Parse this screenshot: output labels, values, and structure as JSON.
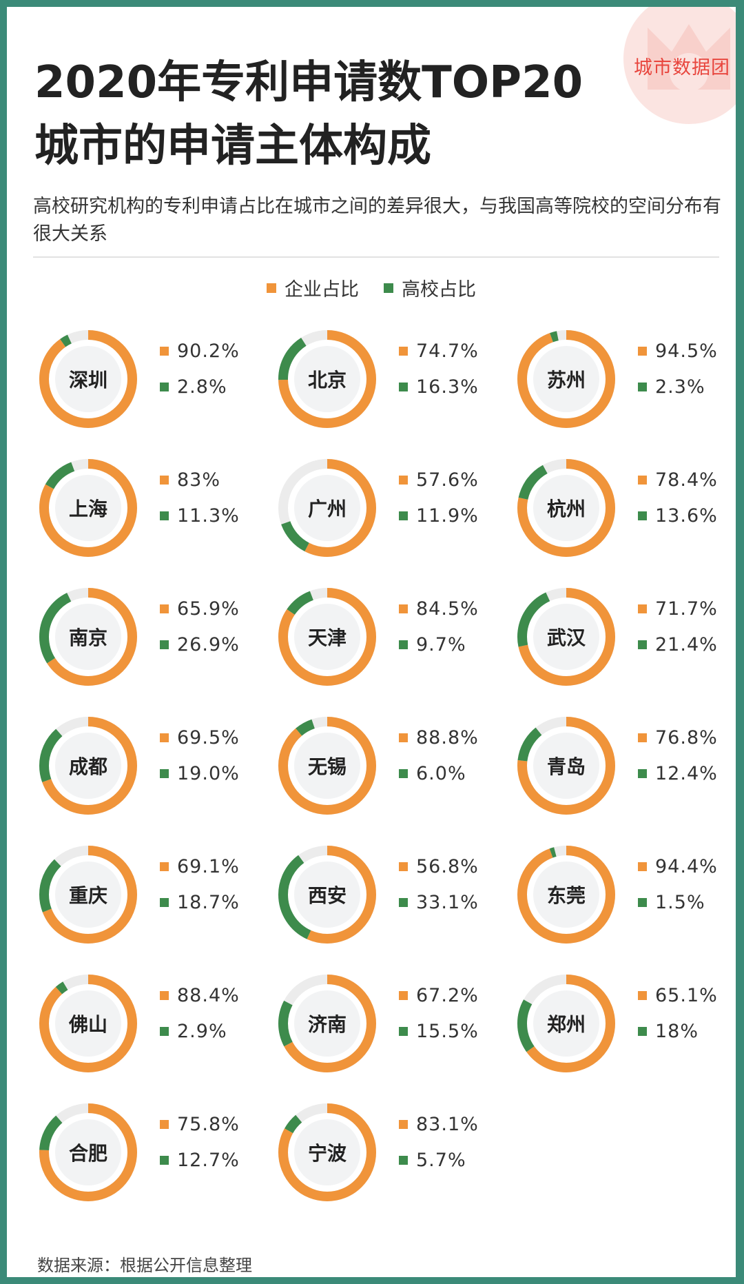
{
  "brand": "城市数据团",
  "title_lines": [
    "2020年专利申请数TOP20",
    "城市的申请主体构成"
  ],
  "subtitle": "高校研究机构的专利申请占比在城市之间的差异很大，与我国高等院校的空间分布有很大关系",
  "legend": {
    "enterprise": "企业占比",
    "university": "高校占比"
  },
  "colors": {
    "enterprise": "#f0943a",
    "university": "#3d8b4c",
    "track": "#ececec",
    "center": "#f2f3f4",
    "brand": "#e8463e"
  },
  "source": "数据来源：根据公开信息整理",
  "chart_data": {
    "type": "donut-grid",
    "title": "2020年专利申请数TOP20城市的申请主体构成",
    "series_names": [
      "企业占比",
      "高校占比"
    ],
    "cities": [
      {
        "name": "深圳",
        "enterprise": 90.2,
        "university": 2.8,
        "enterprise_label": "90.2%",
        "university_label": "2.8%"
      },
      {
        "name": "北京",
        "enterprise": 74.7,
        "university": 16.3,
        "enterprise_label": "74.7%",
        "university_label": "16.3%"
      },
      {
        "name": "苏州",
        "enterprise": 94.5,
        "university": 2.3,
        "enterprise_label": "94.5%",
        "university_label": "2.3%"
      },
      {
        "name": "上海",
        "enterprise": 83,
        "university": 11.3,
        "enterprise_label": "83%",
        "university_label": "11.3%"
      },
      {
        "name": "广州",
        "enterprise": 57.6,
        "university": 11.9,
        "enterprise_label": "57.6%",
        "university_label": "11.9%"
      },
      {
        "name": "杭州",
        "enterprise": 78.4,
        "university": 13.6,
        "enterprise_label": "78.4%",
        "university_label": "13.6%"
      },
      {
        "name": "南京",
        "enterprise": 65.9,
        "university": 26.9,
        "enterprise_label": "65.9%",
        "university_label": "26.9%"
      },
      {
        "name": "天津",
        "enterprise": 84.5,
        "university": 9.7,
        "enterprise_label": "84.5%",
        "university_label": "9.7%"
      },
      {
        "name": "武汉",
        "enterprise": 71.7,
        "university": 21.4,
        "enterprise_label": "71.7%",
        "university_label": "21.4%"
      },
      {
        "name": "成都",
        "enterprise": 69.5,
        "university": 19.0,
        "enterprise_label": "69.5%",
        "university_label": "19.0%"
      },
      {
        "name": "无锡",
        "enterprise": 88.8,
        "university": 6.0,
        "enterprise_label": "88.8%",
        "university_label": "6.0%"
      },
      {
        "name": "青岛",
        "enterprise": 76.8,
        "university": 12.4,
        "enterprise_label": "76.8%",
        "university_label": "12.4%"
      },
      {
        "name": "重庆",
        "enterprise": 69.1,
        "university": 18.7,
        "enterprise_label": "69.1%",
        "university_label": "18.7%"
      },
      {
        "name": "西安",
        "enterprise": 56.8,
        "university": 33.1,
        "enterprise_label": "56.8%",
        "university_label": "33.1%"
      },
      {
        "name": "东莞",
        "enterprise": 94.4,
        "university": 1.5,
        "enterprise_label": "94.4%",
        "university_label": "1.5%"
      },
      {
        "name": "佛山",
        "enterprise": 88.4,
        "university": 2.9,
        "enterprise_label": "88.4%",
        "university_label": "2.9%"
      },
      {
        "name": "济南",
        "enterprise": 67.2,
        "university": 15.5,
        "enterprise_label": "67.2%",
        "university_label": "15.5%"
      },
      {
        "name": "郑州",
        "enterprise": 65.1,
        "university": 18,
        "enterprise_label": "65.1%",
        "university_label": "18%"
      },
      {
        "name": "合肥",
        "enterprise": 75.8,
        "university": 12.7,
        "enterprise_label": "75.8%",
        "university_label": "12.7%"
      },
      {
        "name": "宁波",
        "enterprise": 83.1,
        "university": 5.7,
        "enterprise_label": "83.1%",
        "university_label": "5.7%"
      }
    ]
  }
}
